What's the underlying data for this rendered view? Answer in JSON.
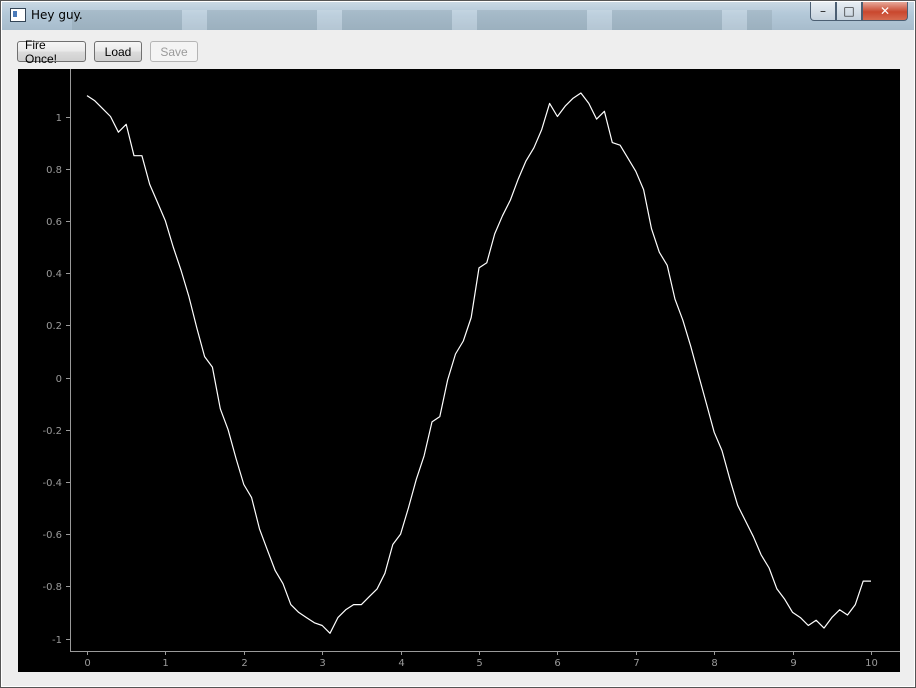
{
  "window": {
    "title": "Hey guy.",
    "minimize_label": "–",
    "maximize_label": "□",
    "close_label": "✕"
  },
  "toolbar": {
    "fire_once_label": "Fire Once!",
    "load_label": "Load",
    "save_label": "Save"
  },
  "colors": {
    "plot_background": "#000000",
    "line": "#ffffff",
    "axis": "#9a9a9a"
  },
  "chart_data": {
    "type": "line",
    "title": "",
    "xlabel": "",
    "ylabel": "",
    "xlim": [
      -0.3,
      10.3
    ],
    "ylim": [
      -1.05,
      1.14
    ],
    "x_ticks": [
      0,
      1,
      2,
      3,
      4,
      5,
      6,
      7,
      8,
      9,
      10
    ],
    "y_ticks": [
      1,
      0.8,
      0.6,
      0.4,
      0.2,
      0,
      -0.2,
      -0.4,
      -0.6,
      -0.8,
      -1
    ],
    "series": [
      {
        "x": [
          0.0,
          0.1,
          0.2,
          0.3,
          0.4,
          0.5,
          0.6,
          0.7,
          0.8,
          0.9,
          1.0,
          1.1,
          1.2,
          1.3,
          1.4,
          1.5,
          1.6,
          1.7,
          1.8,
          1.9,
          2.0,
          2.1,
          2.2,
          2.3,
          2.4,
          2.5,
          2.6,
          2.7,
          2.8,
          2.9,
          3.0,
          3.1,
          3.2,
          3.3,
          3.4,
          3.5,
          3.6,
          3.7,
          3.8,
          3.9,
          4.0,
          4.1,
          4.2,
          4.3,
          4.4,
          4.5,
          4.6,
          4.7,
          4.8,
          4.9,
          5.0,
          5.1,
          5.2,
          5.3,
          5.4,
          5.5,
          5.6,
          5.7,
          5.8,
          5.9,
          6.0,
          6.1,
          6.2,
          6.3,
          6.4,
          6.5,
          6.6,
          6.7,
          6.8,
          6.9,
          7.0,
          7.1,
          7.2,
          7.3,
          7.4,
          7.5,
          7.6,
          7.7,
          7.8,
          7.9,
          8.0,
          8.1,
          8.2,
          8.3,
          8.4,
          8.5,
          8.6,
          8.7,
          8.8,
          8.9,
          9.0,
          9.1,
          9.2,
          9.3,
          9.4,
          9.5,
          9.6,
          9.7,
          9.8,
          9.9,
          10.0
        ],
        "y": [
          1.08,
          1.06,
          1.03,
          1.0,
          0.94,
          0.97,
          0.85,
          0.85,
          0.74,
          0.67,
          0.6,
          0.5,
          0.41,
          0.31,
          0.19,
          0.08,
          0.04,
          -0.12,
          -0.2,
          -0.31,
          -0.41,
          -0.46,
          -0.58,
          -0.66,
          -0.74,
          -0.79,
          -0.87,
          -0.9,
          -0.92,
          -0.94,
          -0.95,
          -0.98,
          -0.92,
          -0.89,
          -0.87,
          -0.87,
          -0.84,
          -0.81,
          -0.75,
          -0.64,
          -0.6,
          -0.5,
          -0.39,
          -0.3,
          -0.17,
          -0.15,
          -0.01,
          0.09,
          0.14,
          0.23,
          0.42,
          0.44,
          0.55,
          0.62,
          0.68,
          0.76,
          0.83,
          0.88,
          0.95,
          1.05,
          1.0,
          1.04,
          1.07,
          1.09,
          1.05,
          0.99,
          1.02,
          0.9,
          0.89,
          0.84,
          0.79,
          0.72,
          0.57,
          0.48,
          0.43,
          0.3,
          0.22,
          0.12,
          0.01,
          -0.1,
          -0.21,
          -0.28,
          -0.39,
          -0.49,
          -0.55,
          -0.61,
          -0.68,
          -0.73,
          -0.81,
          -0.85,
          -0.9,
          -0.92,
          -0.95,
          -0.93,
          -0.96,
          -0.92,
          -0.89,
          -0.91,
          -0.87,
          -0.78,
          -0.78
        ]
      }
    ]
  }
}
